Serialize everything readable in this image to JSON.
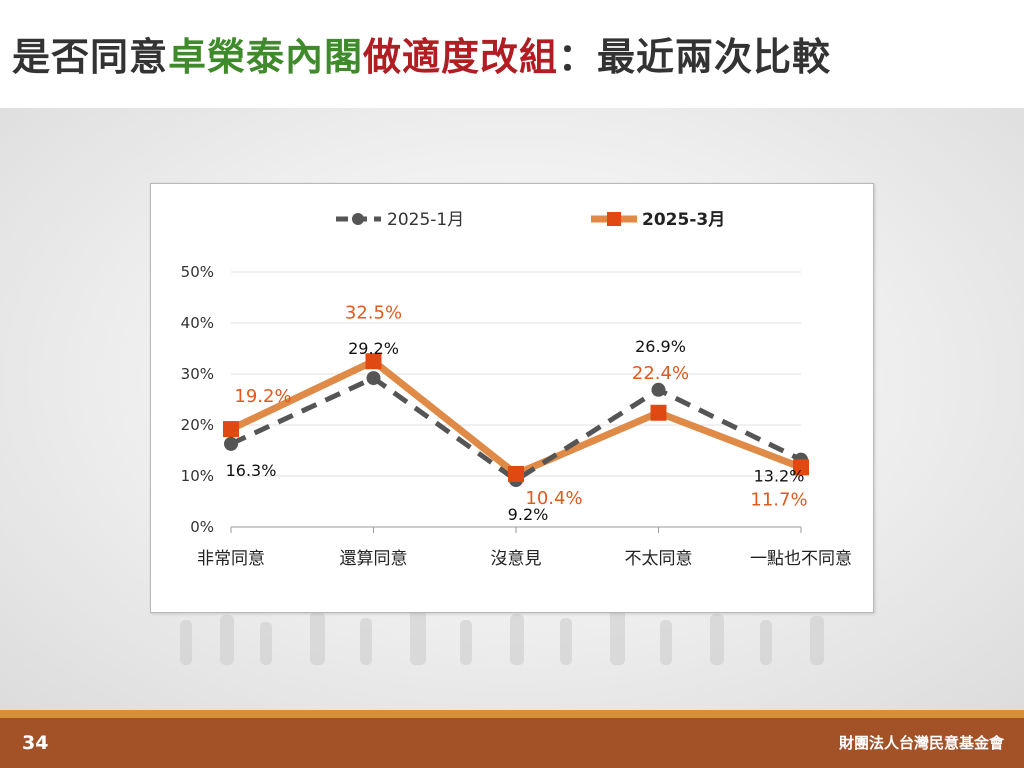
{
  "title": {
    "part1": "是否同意",
    "part2": "卓榮泰內閣",
    "part3": "做適度改組",
    "part4": "：最近兩次比較"
  },
  "footer": {
    "page_number": "34",
    "organization": "財團法人台灣民意基金會"
  },
  "colors": {
    "series1": "#555555",
    "series2_line": "#e08a47",
    "series2_marker": "#e04a12",
    "label_orange": "#e05a1e",
    "title_green": "#3f8a2b",
    "title_red": "#b01e23",
    "footer_bg": "#a35228"
  },
  "chart_data": {
    "type": "line",
    "categories": [
      "非常同意",
      "還算同意",
      "沒意見",
      "不太同意",
      "一點也不同意"
    ],
    "series": [
      {
        "name": "2025-1月",
        "values": [
          16.3,
          29.2,
          9.2,
          26.9,
          13.2
        ],
        "labels": [
          "16.3%",
          "29.2%",
          "9.2%",
          "26.9%",
          "13.2%"
        ],
        "style": "dashed",
        "marker": "circle"
      },
      {
        "name": "2025-3月",
        "values": [
          19.2,
          32.5,
          10.4,
          22.4,
          11.7
        ],
        "labels": [
          "19.2%",
          "32.5%",
          "10.4%",
          "22.4%",
          "11.7%"
        ],
        "style": "solid",
        "marker": "square"
      }
    ],
    "yticks": [
      "0%",
      "10%",
      "20%",
      "30%",
      "40%",
      "50%"
    ],
    "ylim": [
      0,
      50
    ],
    "grid": true,
    "legend": "top"
  }
}
